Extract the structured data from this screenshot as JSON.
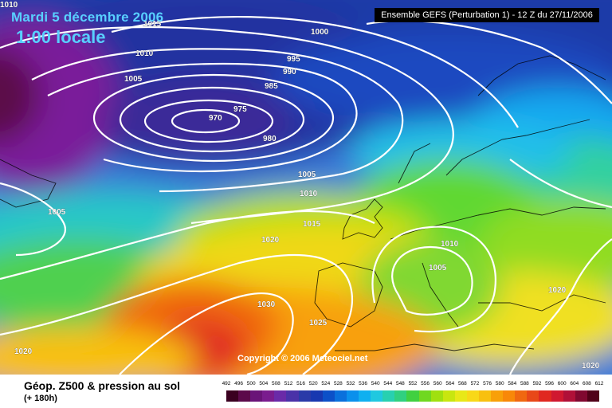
{
  "header": {
    "date": "Mardi 5 décembre 2006",
    "time": "1:00 locale",
    "run": "Ensemble GEFS (Perturbation 1)  - 12 Z du 27/11/2006"
  },
  "copyright": "Copyright © 2006 Meteociel.net",
  "footer": {
    "title": "Géop. Z500 & pression au sol",
    "subtitle": "(+ 180h)"
  },
  "legend": {
    "ticks": [
      "492",
      "496",
      "500",
      "504",
      "508",
      "512",
      "516",
      "520",
      "524",
      "528",
      "532",
      "536",
      "540",
      "544",
      "548",
      "552",
      "556",
      "560",
      "564",
      "568",
      "572",
      "576",
      "580",
      "584",
      "588",
      "592",
      "596",
      "600",
      "604",
      "608",
      "612"
    ],
    "colors": [
      "#3a0020",
      "#5c0a4a",
      "#6a1478",
      "#7a1c8e",
      "#6a2aa8",
      "#4a32a8",
      "#2a3aa8",
      "#1838b0",
      "#0c50c8",
      "#0a70dc",
      "#0a90ec",
      "#10b0f0",
      "#20c8e0",
      "#28d0b0",
      "#30d080",
      "#40d040",
      "#70d820",
      "#a0e010",
      "#c8e610",
      "#e8e818",
      "#f8d818",
      "#f8c010",
      "#f8a008",
      "#f88808",
      "#f06810",
      "#e84818",
      "#e02820",
      "#d01830",
      "#b01038",
      "#800830",
      "#500018"
    ]
  },
  "isobars": [
    "1015",
    "1000",
    "995",
    "990",
    "985",
    "975",
    "970",
    "980",
    "1010",
    "1005",
    "1005",
    "1005",
    "1010",
    "1015",
    "1020",
    "1010",
    "1005",
    "1030",
    "1025",
    "1020",
    "1020",
    "1020",
    "1010"
  ]
}
